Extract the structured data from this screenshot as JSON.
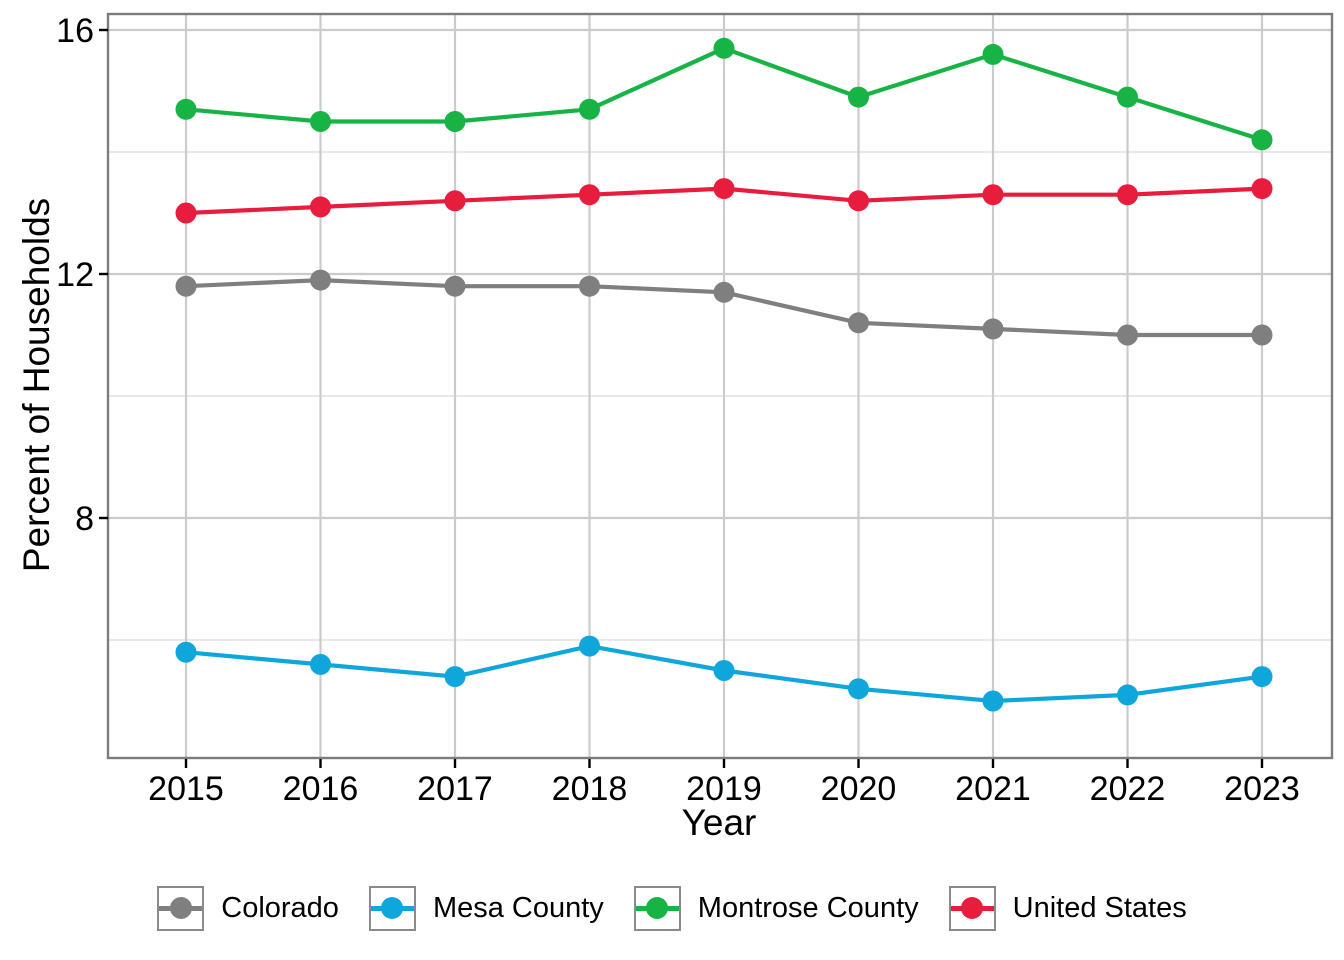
{
  "chart_data": {
    "type": "line",
    "title": "",
    "xlabel": "Year",
    "ylabel": "Percent of Households",
    "x": [
      2015,
      2016,
      2017,
      2018,
      2019,
      2020,
      2021,
      2022,
      2023
    ],
    "series": [
      {
        "name": "Colorado",
        "color": "#7f7f7f",
        "values": [
          11.8,
          11.9,
          11.8,
          11.8,
          11.7,
          11.2,
          11.1,
          11.0,
          11.0
        ]
      },
      {
        "name": "Mesa County",
        "color": "#0fa7db",
        "values": [
          5.8,
          5.6,
          5.4,
          5.9,
          5.5,
          5.2,
          5.0,
          5.1,
          5.4
        ]
      },
      {
        "name": "Montrose County",
        "color": "#17b345",
        "values": [
          14.7,
          14.5,
          14.5,
          14.7,
          15.7,
          14.9,
          15.6,
          14.9,
          14.2
        ]
      },
      {
        "name": "United States",
        "color": "#e81c3d",
        "values": [
          13.0,
          13.1,
          13.2,
          13.3,
          13.4,
          13.2,
          13.3,
          13.3,
          13.4
        ]
      }
    ],
    "ylim": [
      4.1,
      16.3
    ],
    "yticks_major": [
      8,
      12,
      16
    ],
    "yticks_minor": [
      6,
      10,
      14
    ],
    "grid": "horizontal major+minor, vertical major per year",
    "legend_position": "bottom",
    "legend_labels": [
      "Colorado",
      "Mesa County",
      "Montrose County",
      "United States"
    ]
  },
  "style_colors": {
    "grid_major": "#cbcbcb",
    "grid_minor": "#e1e1e1",
    "panel_border": "#7c7c7c",
    "tick": "#000000",
    "text": "#000000",
    "legend_key_border": "#8a8a8a",
    "background": "#ffffff"
  }
}
